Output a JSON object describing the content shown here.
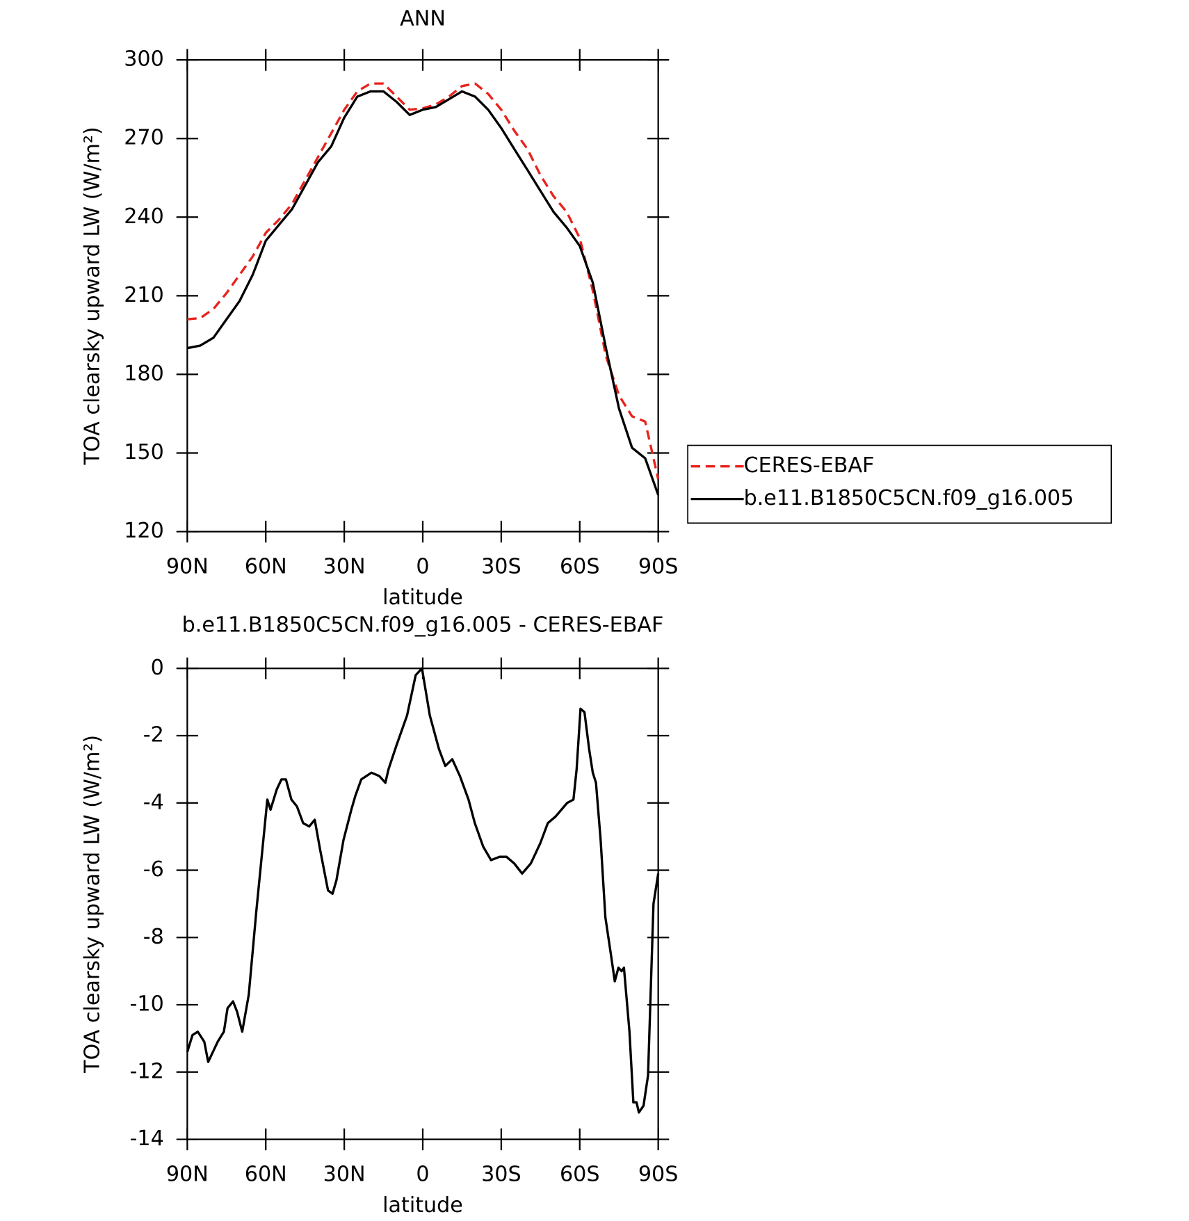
{
  "chart_data": [
    {
      "type": "line",
      "title": "ANN",
      "xlabel": "latitude",
      "ylabel": "TOA clearsky upward LW (W/m²)",
      "xlim": [
        90,
        -90
      ],
      "ylim": [
        120,
        300
      ],
      "xticks": [
        {
          "value": 90,
          "label": "90N"
        },
        {
          "value": 60,
          "label": "60N"
        },
        {
          "value": 30,
          "label": "30N"
        },
        0,
        {
          "value": -30,
          "label": "30S"
        },
        {
          "value": -60,
          "label": "60S"
        },
        {
          "value": -90,
          "label": "90S"
        }
      ],
      "yticks": [
        120,
        150,
        180,
        210,
        240,
        270,
        300
      ],
      "legend": "right",
      "x": [
        90,
        85,
        80,
        75,
        70,
        65,
        60,
        55,
        50,
        45,
        40,
        35,
        30,
        25,
        20,
        15,
        10,
        5,
        0,
        -5,
        -10,
        -15,
        -20,
        -25,
        -30,
        -35,
        -40,
        -45,
        -50,
        -55,
        -60,
        -65,
        -70,
        -75,
        -80,
        -85,
        -90
      ],
      "series": [
        {
          "name": "CERES-EBAF",
          "color": "#e8221c",
          "linestyle": "dashed",
          "values": [
            201,
            201.5,
            205,
            211,
            218,
            225,
            234,
            239,
            245,
            254,
            263,
            272,
            281,
            288,
            291,
            291,
            286,
            281,
            281.5,
            283,
            286,
            290,
            291,
            287,
            281,
            273,
            266,
            256,
            248,
            242,
            232,
            212,
            187,
            172,
            164,
            162,
            140
          ]
        },
        {
          "name": "b.e11.B1850C5CN.f09_g16.005",
          "color": "#000000",
          "linestyle": "solid",
          "values": [
            190,
            191,
            194,
            201,
            208,
            218,
            231,
            237,
            243,
            252,
            261,
            267,
            278,
            286,
            288,
            288,
            284,
            279,
            281,
            282,
            285,
            288,
            286,
            281,
            274,
            266,
            258,
            250,
            242,
            236,
            229,
            215,
            190,
            167,
            152,
            148,
            134
          ]
        }
      ]
    },
    {
      "type": "line",
      "title": "b.e11.B1850C5CN.f09_g16.005 - CERES-EBAF",
      "xlabel": "latitude",
      "ylabel": "TOA clearsky upward LW (W/m²)",
      "xlim": [
        90,
        -90
      ],
      "ylim": [
        -14,
        0
      ],
      "xticks": [
        {
          "value": 90,
          "label": "90N"
        },
        {
          "value": 60,
          "label": "60N"
        },
        {
          "value": 30,
          "label": "30N"
        },
        0,
        {
          "value": -30,
          "label": "30S"
        },
        {
          "value": -60,
          "label": "60S"
        },
        {
          "value": -90,
          "label": "90S"
        }
      ],
      "yticks": [
        -14,
        -12,
        -10,
        -8,
        -6,
        -4,
        -2,
        0
      ],
      "x": [
        90,
        88,
        86,
        83.5,
        82,
        78.4,
        76,
        74.6,
        72.5,
        71,
        69,
        66.5,
        63.6,
        59.4,
        58.2,
        55.8,
        54,
        52.3,
        50.2,
        48.1,
        45.7,
        43.4,
        41.3,
        39.2,
        36.2,
        34.5,
        33,
        30.3,
        27.3,
        25.8,
        23.5,
        19.6,
        16.6,
        14.3,
        13.1,
        10.1,
        6,
        2.7,
        0.3,
        -2.7,
        -6.2,
        -8.6,
        -11.3,
        -14.2,
        -17.5,
        -19.9,
        -23.1,
        -26.1,
        -29.4,
        -32,
        -35,
        -38,
        -41.3,
        -44.9,
        -47.8,
        -50.8,
        -55.2,
        -57.6,
        -58.8,
        -60.3,
        -61.8,
        -63.6,
        -65,
        -66.2,
        -68,
        -69.8,
        -71.9,
        -73.4,
        -74.8,
        -76,
        -76.9,
        -79,
        -80.5,
        -81.7,
        -82.6,
        -84.4,
        -86.1,
        -88.2,
        -90
      ],
      "series": [
        {
          "color": "#000000",
          "linestyle": "solid",
          "values": [
            -11.4,
            -10.9,
            -10.8,
            -11.1,
            -11.7,
            -11.1,
            -10.8,
            -10.1,
            -9.9,
            -10.2,
            -10.8,
            -9.7,
            -7.2,
            -3.9,
            -4.2,
            -3.6,
            -3.3,
            -3.3,
            -3.9,
            -4.1,
            -4.6,
            -4.7,
            -4.5,
            -5.4,
            -6.6,
            -6.7,
            -6.3,
            -5.1,
            -4.2,
            -3.8,
            -3.3,
            -3.1,
            -3.2,
            -3.4,
            -3.0,
            -2.3,
            -1.4,
            -0.2,
            0,
            -1.4,
            -2.4,
            -2.9,
            -2.7,
            -3.2,
            -3.9,
            -4.6,
            -5.3,
            -5.7,
            -5.6,
            -5.6,
            -5.8,
            -6.1,
            -5.8,
            -5.2,
            -4.6,
            -4.4,
            -4.0,
            -3.9,
            -3.0,
            -1.2,
            -1.3,
            -2.4,
            -3.1,
            -3.4,
            -5.1,
            -7.4,
            -8.5,
            -9.3,
            -8.9,
            -9.0,
            -8.9,
            -10.8,
            -12.9,
            -12.9,
            -13.2,
            -13.0,
            -12.1,
            -7.0,
            -6.1
          ]
        }
      ]
    }
  ]
}
